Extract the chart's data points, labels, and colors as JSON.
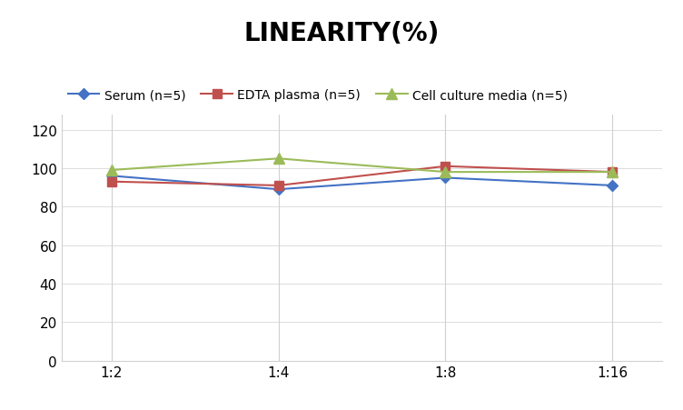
{
  "title": "LINEARITY(%)",
  "x_labels": [
    "1:2",
    "1:4",
    "1:8",
    "1:16"
  ],
  "series": [
    {
      "label": "Serum (n=5)",
      "values": [
        96,
        89,
        95,
        91
      ],
      "color": "#4472C4",
      "marker": "D",
      "marker_size": 6
    },
    {
      "label": "EDTA plasma (n=5)",
      "values": [
        93,
        91,
        101,
        98
      ],
      "color": "#C0504D",
      "marker": "s",
      "marker_size": 7
    },
    {
      "label": "Cell culture media (n=5)",
      "values": [
        99,
        105,
        98,
        98
      ],
      "color": "#9BBB59",
      "marker": "^",
      "marker_size": 8
    }
  ],
  "ylim": [
    0,
    128
  ],
  "yticks": [
    0,
    20,
    40,
    60,
    80,
    100,
    120
  ],
  "background_color": "#ffffff",
  "grid_color": "#d0d0d0",
  "title_fontsize": 20,
  "legend_fontsize": 10,
  "tick_fontsize": 11
}
